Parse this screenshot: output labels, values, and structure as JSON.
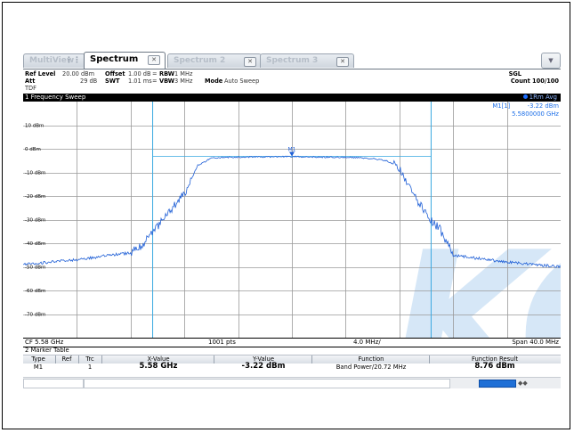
{
  "tabs": [
    {
      "label": "MultiView",
      "active": false
    },
    {
      "label": "Spectrum",
      "active": true
    },
    {
      "label": "Spectrum 2",
      "active": false
    },
    {
      "label": "Spectrum 3",
      "active": false
    }
  ],
  "tab_menu_icon": "chevron-down-icon",
  "settings": {
    "ref_level_label": "Ref Level",
    "ref_level_value": "20.00 dBm",
    "offset_label": "Offset",
    "offset_value": "1.00 dB",
    "rbw_label": "RBW",
    "rbw_value": "1 MHz",
    "att_label": "Att",
    "att_value": "29 dB",
    "swt_label": "SWT",
    "swt_value": "1.01 ms",
    "vbw_label": "VBW",
    "vbw_value": "3 MHz",
    "mode_label": "Mode",
    "mode_value": "Auto Sweep",
    "tdf": "TDF",
    "sgl": "SGL",
    "count": "Count 100/100"
  },
  "window": {
    "title": "1 Frequency Sweep",
    "trace_label": "1Rm Avg",
    "marker_name": "M1[1]",
    "marker_level": "-3.22 dBm",
    "marker_freq": "5.5800000 GHz",
    "marker_flag": "M1"
  },
  "axis": {
    "y_labels": [
      "10 dBm",
      "0 dBm",
      "-10 dBm",
      "-20 dBm",
      "-30 dBm",
      "-40 dBm",
      "-50 dBm",
      "-60 dBm",
      "-70 dBm"
    ],
    "cf": "CF 5.58 GHz",
    "pts": "1001 pts",
    "div": "4.0 MHz/",
    "span": "Span 40.0 MHz"
  },
  "marker_table": {
    "title": "2 Marker Table",
    "headers": [
      "Type",
      "Ref",
      "Trc",
      "X-Value",
      "Y-Value",
      "Function",
      "Function Result"
    ],
    "row": [
      "M1",
      "",
      "1",
      "5.58 GHz",
      "-3.22 dBm",
      "Band Power/20.72 MHz",
      "8.76 dBm"
    ]
  },
  "colors": {
    "trace": "#1f5fd6",
    "marker_line": "#39a8e0",
    "watermark": "#cfe3f6"
  },
  "watermark_text": "KC",
  "chart_data": {
    "type": "line",
    "x": [
      -20,
      -16,
      -12,
      -11,
      -10,
      -9,
      -8,
      -7,
      -6,
      -5,
      0,
      5,
      6,
      7,
      8,
      9,
      10,
      11,
      12,
      16,
      20
    ],
    "series": [
      {
        "values": [
          -49,
          -47,
          -44,
          -40,
          -33,
          -26,
          -19,
          -7,
          -4,
          -3.6,
          -3.3,
          -3.8,
          -4.2,
          -5,
          -8,
          -19,
          -28,
          -34,
          -45,
          -48,
          -50
        ]
      }
    ],
    "xlabel": "",
    "ylabel": "",
    "ylim": [
      -80,
      20
    ],
    "xlim": [
      -20,
      20
    ],
    "grid": true
  }
}
